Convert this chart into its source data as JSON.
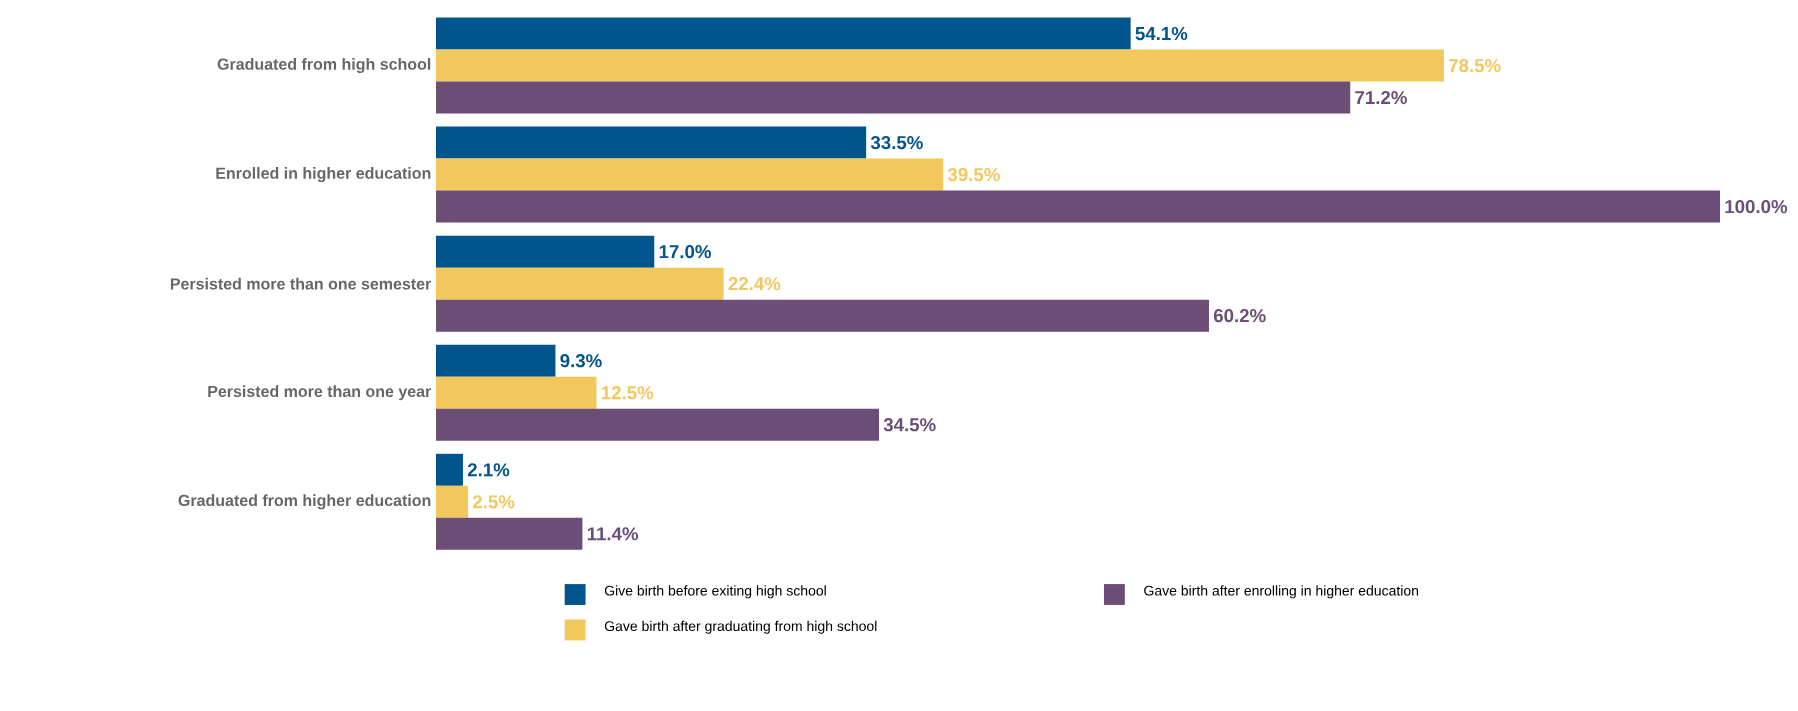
{
  "chart_data": {
    "type": "bar",
    "orientation": "horizontal",
    "legend": "bottom",
    "categories": [
      "Graduated from high school",
      "Enrolled in higher education",
      "Persisted more than one semester",
      "Persisted more than one year",
      "Graduated from higher education"
    ],
    "series": [
      {
        "name": "Give birth before exiting high school",
        "color": "#00558c",
        "values": [
          54.1,
          33.5,
          17.0,
          9.3,
          2.1
        ],
        "value_labels": [
          "54.1%",
          "33.5%",
          "17.0%",
          "9.3%",
          "2.1%"
        ]
      },
      {
        "name": "Gave birth after graduating from high school",
        "color": "#f2c75c",
        "values": [
          78.5,
          39.5,
          22.4,
          12.5,
          2.5
        ],
        "value_labels": [
          "78.5%",
          "39.5%",
          "22.4%",
          "12.5%",
          "2.5%"
        ]
      },
      {
        "name": "Gave birth after enrolling in higher education",
        "color": "#6b4d76",
        "values": [
          71.2,
          100.0,
          60.2,
          34.5,
          11.4
        ],
        "value_labels": [
          "71.2%",
          "100.0%",
          "60.2%",
          "34.5%",
          "11.4%"
        ]
      }
    ]
  }
}
